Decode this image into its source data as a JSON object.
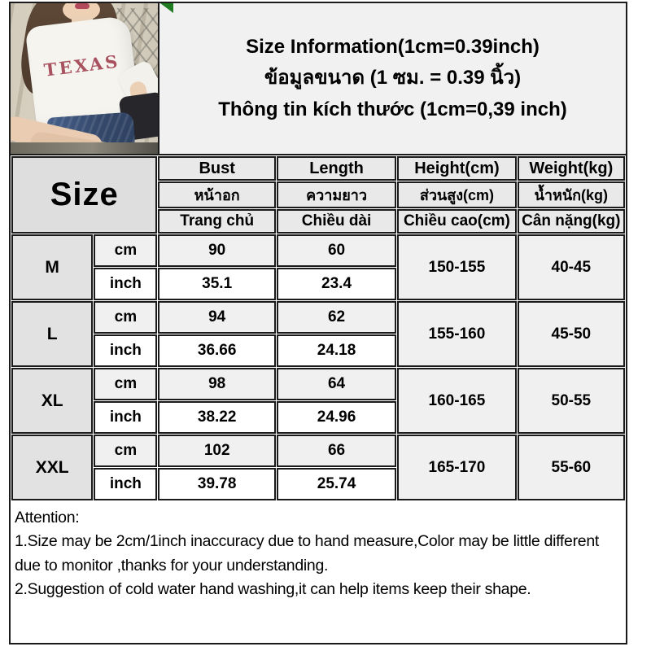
{
  "title": {
    "english": "Size Information(1cm=0.39inch)",
    "thai": "ข้อมูลขนาด (1 ซม. = 0.39 นิ้ว)",
    "vietnamese": "Thông tin kích thước (1cm=0,39 inch)"
  },
  "photo": {
    "shirt_text": "TEXAS"
  },
  "table": {
    "size_header": "Size",
    "unit_cm": "cm",
    "unit_inch": "inch",
    "columns": [
      {
        "en": "Bust",
        "th": "หน้าอก",
        "vi": "Trang chủ"
      },
      {
        "en": "Length",
        "th": "ความยาว",
        "vi": "Chiều dài"
      },
      {
        "en": "Height(cm)",
        "th": "ส่วนสูง(cm)",
        "vi": "Chiều cao(cm)"
      },
      {
        "en": "Weight(kg)",
        "th": "น้ำหนัก(kg)",
        "vi": "Cân nặng(kg)"
      }
    ],
    "rows": [
      {
        "size": "M",
        "bust_cm": "90",
        "length_cm": "60",
        "bust_inch": "35.1",
        "length_inch": "23.4",
        "height": "150-155",
        "weight": "40-45"
      },
      {
        "size": "L",
        "bust_cm": "94",
        "length_cm": "62",
        "bust_inch": "36.66",
        "length_inch": "24.18",
        "height": "155-160",
        "weight": "45-50"
      },
      {
        "size": "XL",
        "bust_cm": "98",
        "length_cm": "64",
        "bust_inch": "38.22",
        "length_inch": "24.96",
        "height": "160-165",
        "weight": "50-55"
      },
      {
        "size": "XXL",
        "bust_cm": "102",
        "length_cm": "66",
        "bust_inch": "39.78",
        "length_inch": "25.74",
        "height": "165-170",
        "weight": "55-60"
      }
    ]
  },
  "attention": {
    "heading": "Attention:",
    "note1": "1.Size may be 2cm/1inch inaccuracy due to hand measure,Color may be little different due to monitor ,thanks for your understanding.",
    "note2": "2.Suggestion of cold water hand washing,it can help items keep their shape."
  },
  "colors": {
    "frame_border": "#1b1b1b",
    "title_panel_bg": "#f1f1f1",
    "header_cell_bg": "#e9e9e9",
    "size_cell_bg": "#dedede",
    "cm_row_bg": "#f0f0f0",
    "inch_row_bg": "#ffffff",
    "green_marker": "#1f7c21",
    "shirt_text_red": "#a8515f",
    "denim_blue": "#35496c"
  }
}
